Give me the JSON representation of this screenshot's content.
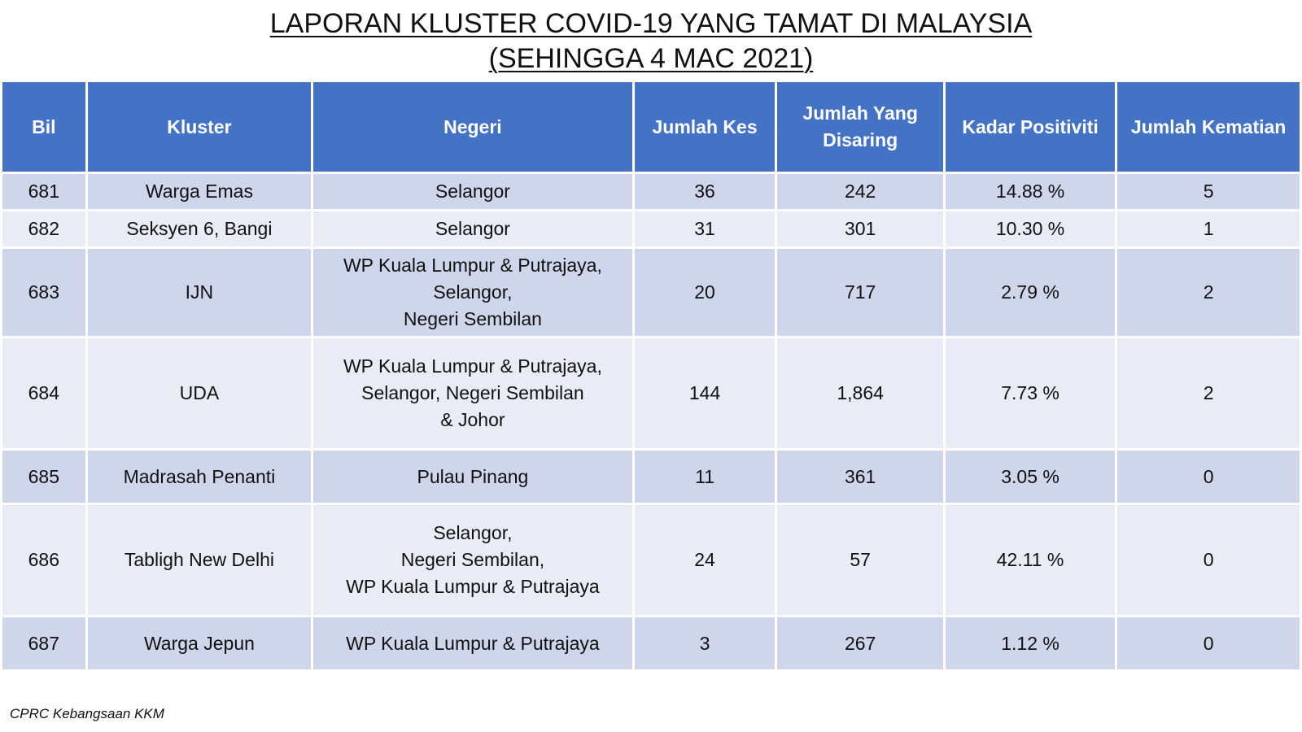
{
  "title": {
    "line1": "LAPORAN KLUSTER COVID-19 YANG TAMAT DI MALAYSIA",
    "line2": "(SEHINGGA 4 MAC 2021)"
  },
  "table": {
    "headers": {
      "bil": "Bil",
      "kluster": "Kluster",
      "negeri": "Negeri",
      "jumlah_kes": "Jumlah Kes",
      "jumlah_disaring_1": "Jumlah Yang",
      "jumlah_disaring_2": "Disaring",
      "kadar_positiviti": "Kadar Positiviti",
      "jumlah_kematian": "Jumlah Kematian"
    },
    "rows": [
      {
        "bil": "681",
        "kluster": "Warga Emas",
        "negeri": [
          "Selangor"
        ],
        "kes": "36",
        "disaring": "242",
        "positiviti": "14.88 %",
        "kematian": "5"
      },
      {
        "bil": "682",
        "kluster": "Seksyen 6, Bangi",
        "negeri": [
          "Selangor"
        ],
        "kes": "31",
        "disaring": "301",
        "positiviti": "10.30 %",
        "kematian": "1"
      },
      {
        "bil": "683",
        "kluster": "IJN",
        "negeri": [
          "WP Kuala Lumpur & Putrajaya,",
          "Selangor,",
          "Negeri Sembilan"
        ],
        "kes": "20",
        "disaring": "717",
        "positiviti": "2.79 %",
        "kematian": "2"
      },
      {
        "bil": "684",
        "kluster": "UDA",
        "negeri": [
          "WP Kuala Lumpur & Putrajaya,",
          "Selangor, Negeri Sembilan",
          "& Johor"
        ],
        "kes": "144",
        "disaring": "1,864",
        "positiviti": "7.73 %",
        "kematian": "2"
      },
      {
        "bil": "685",
        "kluster": "Madrasah Penanti",
        "negeri": [
          "Pulau Pinang"
        ],
        "kes": "11",
        "disaring": "361",
        "positiviti": "3.05 %",
        "kematian": "0"
      },
      {
        "bil": "686",
        "kluster": "Tabligh New Delhi",
        "negeri": [
          "Selangor,",
          "Negeri Sembilan,",
          "WP Kuala Lumpur & Putrajaya"
        ],
        "kes": "24",
        "disaring": "57",
        "positiviti": "42.11 %",
        "kematian": "0"
      },
      {
        "bil": "687",
        "kluster": "Warga Jepun",
        "negeri": [
          "WP Kuala Lumpur & Putrajaya"
        ],
        "kes": "3",
        "disaring": "267",
        "positiviti": "1.12 %",
        "kematian": "0"
      }
    ]
  },
  "footer": "CPRC Kebangsaan KKM",
  "colors": {
    "header_bg": "#4472c4",
    "row_odd": "#cfd5ea",
    "row_even": "#e9ebf5"
  }
}
